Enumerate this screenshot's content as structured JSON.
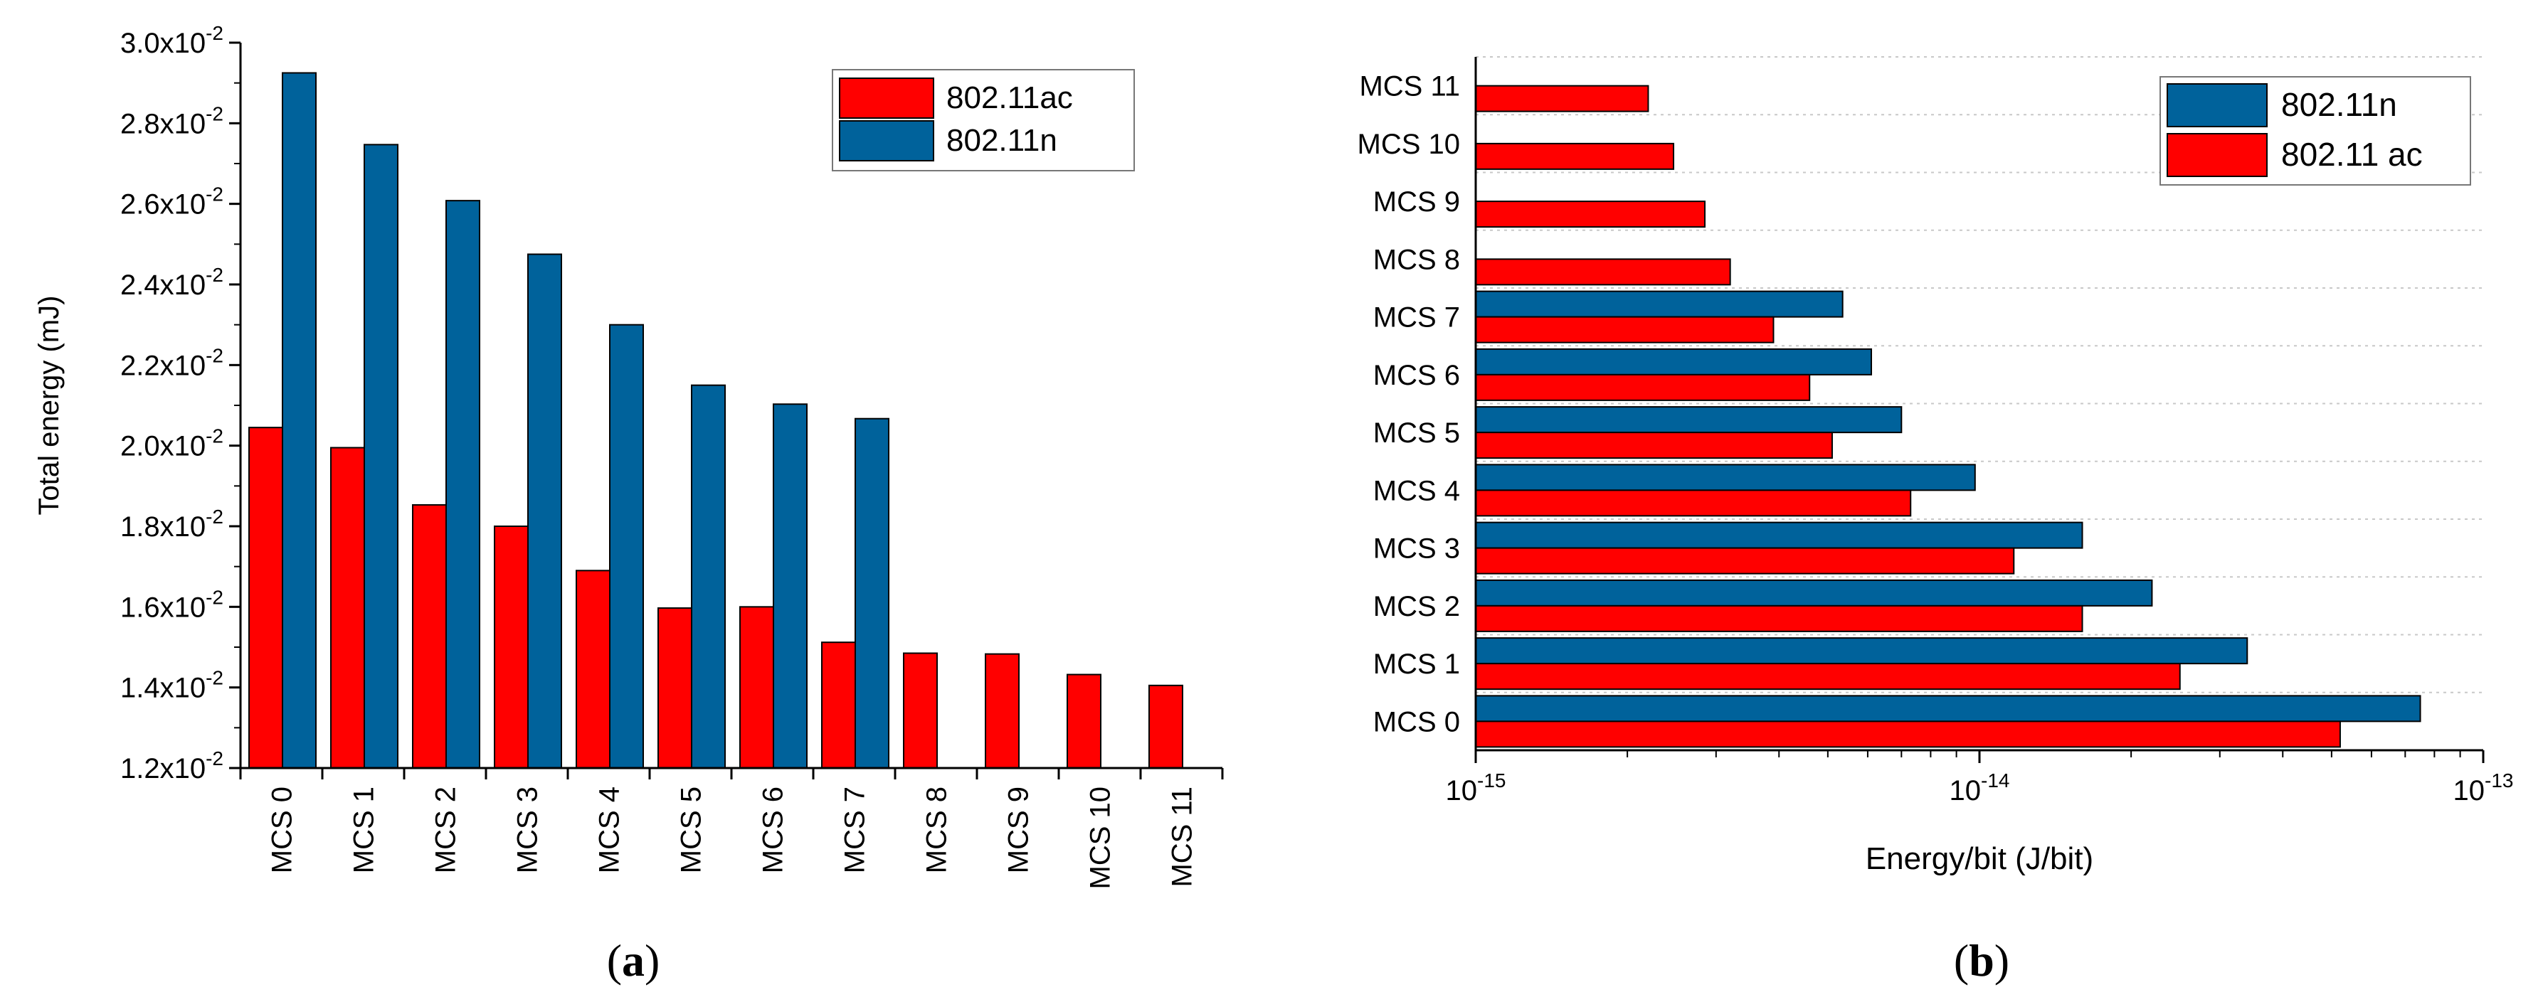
{
  "figure": {
    "panel_a_caption": {
      "open": "(",
      "letter": "a",
      "close": ")"
    },
    "panel_b_caption": {
      "open": "(",
      "letter": "b",
      "close": ")"
    }
  },
  "chart_data": [
    {
      "id": "a",
      "type": "bar",
      "orientation": "vertical",
      "title": "",
      "xlabel": "",
      "ylabel": "Total energy (mJ)",
      "categories": [
        "MCS 0",
        "MCS 1",
        "MCS 2",
        "MCS 3",
        "MCS 4",
        "MCS 5",
        "MCS 6",
        "MCS 7",
        "MCS 8",
        "MCS 9",
        "MCS 10",
        "MCS 11"
      ],
      "ylim": [
        0.012,
        0.03
      ],
      "yticks": [
        {
          "value": 0.012,
          "mant": "1.2x10",
          "exp": "-2"
        },
        {
          "value": 0.014,
          "mant": "1.4x10",
          "exp": "-2"
        },
        {
          "value": 0.016,
          "mant": "1.6x10",
          "exp": "-2"
        },
        {
          "value": 0.018,
          "mant": "1.8x10",
          "exp": "-2"
        },
        {
          "value": 0.02,
          "mant": "2.0x10",
          "exp": "-2"
        },
        {
          "value": 0.022,
          "mant": "2.2x10",
          "exp": "-2"
        },
        {
          "value": 0.024,
          "mant": "2.4x10",
          "exp": "-2"
        },
        {
          "value": 0.026,
          "mant": "2.6x10",
          "exp": "-2"
        },
        {
          "value": 0.028,
          "mant": "2.8x10",
          "exp": "-2"
        },
        {
          "value": 0.03,
          "mant": "3.0x10",
          "exp": "-2"
        }
      ],
      "series": [
        {
          "name": "802.11ac",
          "color": "#ff0000",
          "values": [
            0.02045,
            0.01995,
            0.01853,
            0.018,
            0.0169,
            0.01597,
            0.016,
            0.01512,
            0.01485,
            0.01483,
            0.01432,
            0.01405
          ]
        },
        {
          "name": "802.11n",
          "color": "#00629b",
          "values": [
            0.02925,
            0.02747,
            0.02608,
            0.02475,
            0.023,
            0.0215,
            0.02103,
            0.02067,
            null,
            null,
            null,
            null
          ]
        }
      ],
      "legend": {
        "position": "top-right",
        "order": [
          "802.11ac",
          "802.11n"
        ]
      },
      "grid": false
    },
    {
      "id": "b",
      "type": "bar",
      "orientation": "horizontal",
      "title": "",
      "xlabel": "Energy/bit (J/bit)",
      "ylabel": "",
      "xscale": "log",
      "xlim": [
        1e-15,
        1e-13
      ],
      "xticks": [
        {
          "value": 1e-15,
          "base": "10",
          "exp": "-15"
        },
        {
          "value": 1e-14,
          "base": "10",
          "exp": "-14"
        },
        {
          "value": 1e-13,
          "base": "10",
          "exp": "-13"
        }
      ],
      "categories": [
        "MCS 0",
        "MCS 1",
        "MCS 2",
        "MCS 3",
        "MCS 4",
        "MCS 5",
        "MCS 6",
        "MCS 7",
        "MCS 8",
        "MCS 9",
        "MCS 10",
        "MCS 11"
      ],
      "series": [
        {
          "name": "802.11n",
          "color": "#00629b",
          "values": [
            7.5e-14,
            3.4e-14,
            2.2e-14,
            1.6e-14,
            9.8e-15,
            7e-15,
            6.1e-15,
            5.35e-15,
            null,
            null,
            null,
            null
          ]
        },
        {
          "name": "802.11 ac",
          "color": "#ff0000",
          "values": [
            5.2e-14,
            2.5e-14,
            1.6e-14,
            1.17e-14,
            7.3e-15,
            5.1e-15,
            4.6e-15,
            3.9e-15,
            3.2e-15,
            2.85e-15,
            2.47e-15,
            2.2e-15
          ]
        }
      ],
      "legend": {
        "position": "top-right",
        "order": [
          "802.11n",
          "802.11 ac"
        ]
      },
      "grid": "dotted horizontal"
    }
  ]
}
